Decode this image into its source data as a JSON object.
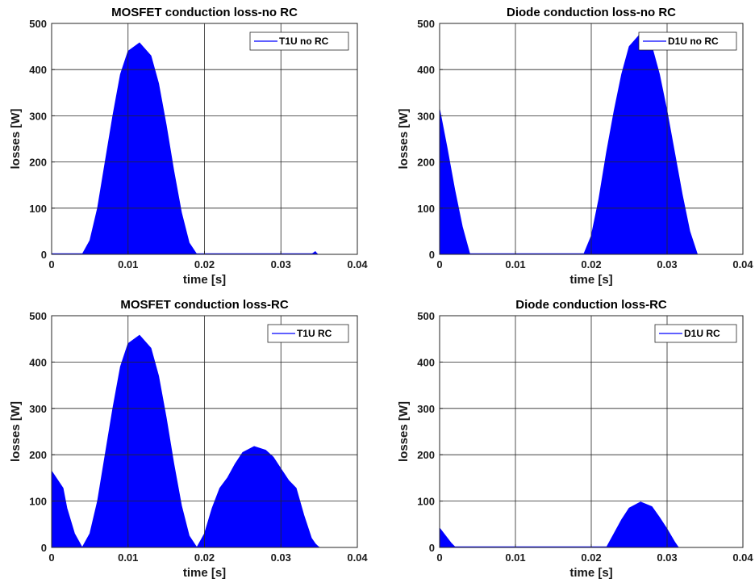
{
  "figure": {
    "accent_color": "#0000ff"
  },
  "chart_data": [
    {
      "type": "area",
      "title": "MOSFET conduction loss-no RC",
      "xlabel": "time [s]",
      "ylabel": "losses [W]",
      "xlim": [
        0,
        0.04
      ],
      "ylim": [
        0,
        500
      ],
      "xticks": [
        "0",
        "0.01",
        "0.02",
        "0.03",
        "0.04"
      ],
      "yticks": [
        "0",
        "100",
        "200",
        "300",
        "400",
        "500"
      ],
      "grid": true,
      "legend": {
        "position": "top-right",
        "entries": [
          "T1U no RC"
        ]
      },
      "series": [
        {
          "name": "T1U no RC",
          "color": "#0000ff",
          "x": [
            0,
            0.004,
            0.005,
            0.006,
            0.007,
            0.008,
            0.009,
            0.01,
            0.0115,
            0.013,
            0.014,
            0.015,
            0.016,
            0.017,
            0.018,
            0.019,
            0.034,
            0.0345,
            0.0348
          ],
          "y": [
            0,
            0,
            30,
            100,
            200,
            300,
            390,
            440,
            458,
            430,
            370,
            280,
            180,
            90,
            25,
            0,
            0,
            6,
            0
          ]
        }
      ]
    },
    {
      "type": "area",
      "title": "Diode conduction loss-no RC",
      "xlabel": "time [s]",
      "ylabel": "losses [W]",
      "xlim": [
        0,
        0.04
      ],
      "ylim": [
        0,
        500
      ],
      "xticks": [
        "0",
        "0.01",
        "0.02",
        "0.03",
        "0.04"
      ],
      "yticks": [
        "0",
        "100",
        "200",
        "300",
        "400",
        "500"
      ],
      "grid": true,
      "legend": {
        "position": "top-right",
        "entries": [
          "D1U no RC"
        ]
      },
      "series": [
        {
          "name": "D1U no RC",
          "color": "#0000ff",
          "x": [
            0,
            0.001,
            0.002,
            0.003,
            0.004,
            0.019,
            0.02,
            0.021,
            0.022,
            0.023,
            0.024,
            0.025,
            0.0265,
            0.028,
            0.029,
            0.03,
            0.031,
            0.032,
            0.033,
            0.034
          ],
          "y": [
            315,
            230,
            140,
            60,
            0,
            0,
            40,
            120,
            220,
            310,
            390,
            450,
            478,
            450,
            390,
            310,
            220,
            130,
            50,
            0
          ]
        }
      ]
    },
    {
      "type": "area",
      "title": "MOSFET conduction loss-RC",
      "xlabel": "time [s]",
      "ylabel": "losses [W]",
      "xlim": [
        0,
        0.04
      ],
      "ylim": [
        0,
        500
      ],
      "xticks": [
        "0",
        "0.01",
        "0.02",
        "0.03",
        "0.04"
      ],
      "yticks": [
        "0",
        "100",
        "200",
        "300",
        "400",
        "500"
      ],
      "grid": true,
      "legend": {
        "position": "top-right",
        "entries": [
          "T1U RC"
        ]
      },
      "series": [
        {
          "name": "T1U RC",
          "color": "#0000ff",
          "x": [
            0,
            0.0015,
            0.002,
            0.003,
            0.004,
            0.005,
            0.006,
            0.007,
            0.008,
            0.009,
            0.01,
            0.0115,
            0.013,
            0.014,
            0.015,
            0.016,
            0.017,
            0.018,
            0.019,
            0.02,
            0.021,
            0.022,
            0.023,
            0.024,
            0.025,
            0.0265,
            0.028,
            0.029,
            0.03,
            0.031,
            0.032,
            0.033,
            0.034,
            0.0345,
            0.035
          ],
          "y": [
            165,
            128,
            85,
            30,
            0,
            30,
            100,
            200,
            300,
            390,
            440,
            458,
            430,
            370,
            280,
            180,
            90,
            25,
            0,
            30,
            85,
            128,
            150,
            180,
            205,
            218,
            210,
            195,
            170,
            145,
            128,
            70,
            20,
            8,
            0
          ]
        }
      ]
    },
    {
      "type": "area",
      "title": "Diode conduction loss-RC",
      "xlabel": "time [s]",
      "ylabel": "losses [W]",
      "xlim": [
        0,
        0.04
      ],
      "ylim": [
        0,
        500
      ],
      "xticks": [
        "0",
        "0.01",
        "0.02",
        "0.03",
        "0.04"
      ],
      "yticks": [
        "0",
        "100",
        "200",
        "300",
        "400",
        "500"
      ],
      "grid": true,
      "legend": {
        "position": "top-right",
        "entries": [
          "D1U RC"
        ]
      },
      "series": [
        {
          "name": "D1U RC",
          "color": "#0000ff",
          "x": [
            0,
            0.0015,
            0.0021,
            0.022,
            0.023,
            0.024,
            0.025,
            0.0265,
            0.028,
            0.029,
            0.03,
            0.031,
            0.0315
          ],
          "y": [
            42,
            10,
            0,
            0,
            30,
            60,
            85,
            98,
            88,
            65,
            40,
            12,
            0
          ]
        }
      ]
    }
  ]
}
